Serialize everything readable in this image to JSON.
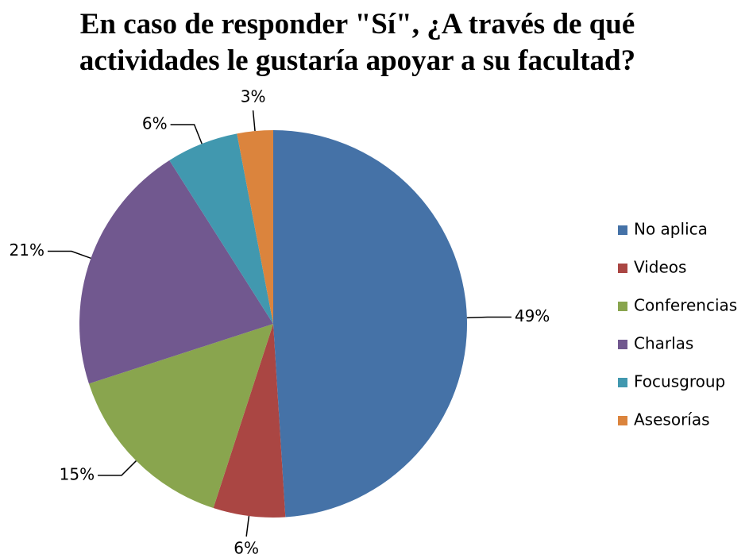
{
  "chart_data": {
    "type": "pie",
    "title": "En caso de responder \"Sí\", ¿A través de qué actividades le gustaría apoyar a su facultad?",
    "categories": [
      "No aplica",
      "Videos",
      "Conferencias",
      "Charlas",
      "Focusgroup",
      "Asesorías"
    ],
    "values": [
      49,
      6,
      15,
      21,
      6,
      3
    ],
    "value_labels": [
      "49%",
      "6%",
      "15%",
      "21%",
      "6%",
      "3%"
    ],
    "colors": [
      "#4572a7",
      "#aa4643",
      "#89a54e",
      "#71588f",
      "#4198af",
      "#db843d"
    ],
    "legend": "right"
  }
}
